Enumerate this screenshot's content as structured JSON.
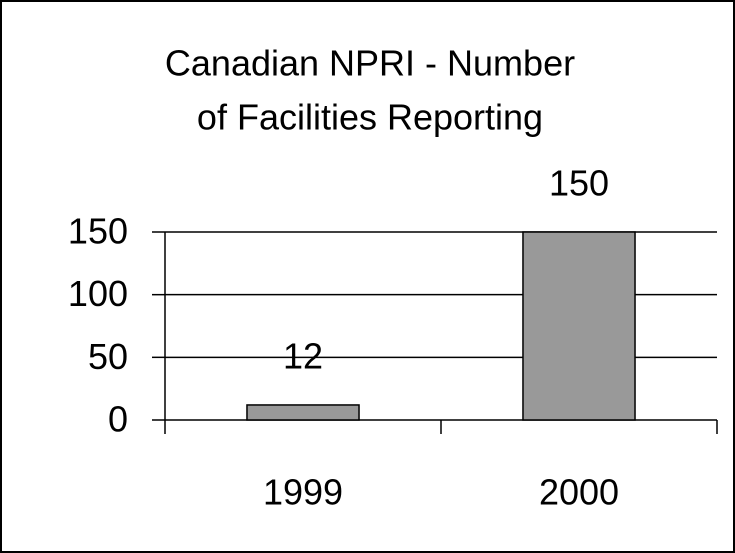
{
  "chart_data": {
    "type": "bar",
    "title": [
      "Canadian NPRI - Number",
      "of Facilities Reporting"
    ],
    "categories": [
      "1999",
      "2000"
    ],
    "values": [
      12,
      150
    ],
    "color": "#999999",
    "ylim": [
      0,
      150
    ],
    "yticks": [
      0,
      50,
      100,
      150
    ],
    "grid": true
  }
}
